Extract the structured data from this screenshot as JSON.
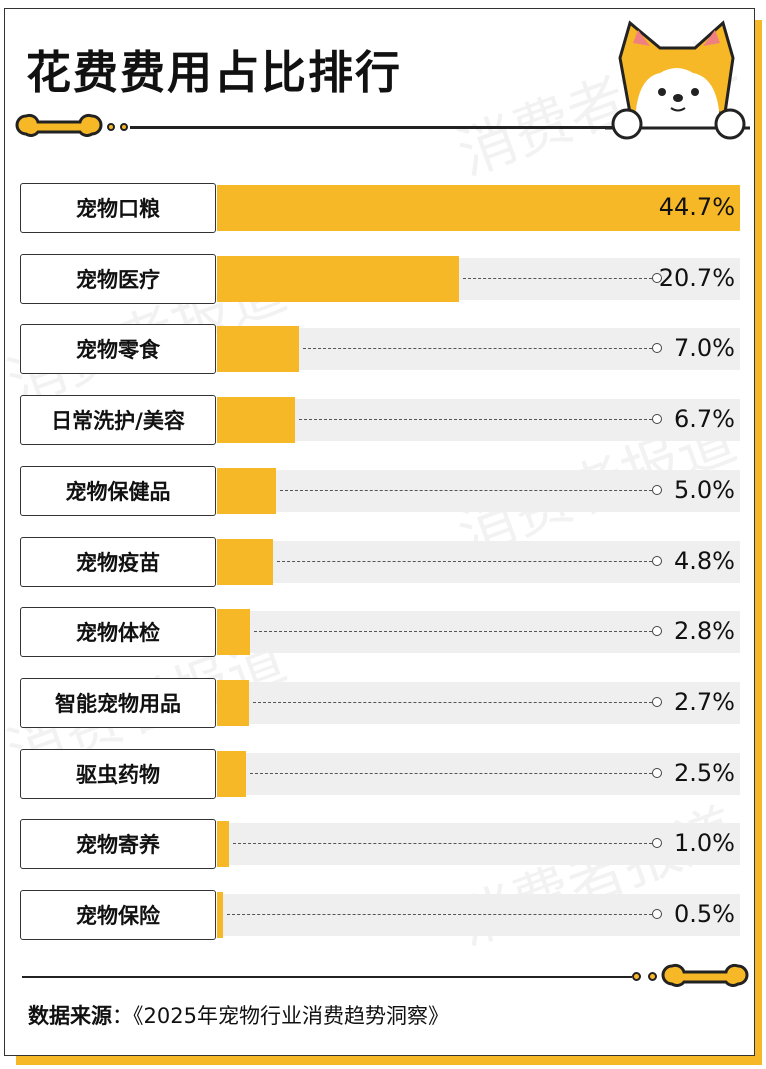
{
  "title": "花费费用占比排行",
  "watermark": "消费者报道",
  "source_label": "数据来源",
  "source_sep": "：",
  "source_text": "《2025年宠物行业消费趋势洞察》",
  "colors": {
    "bar": "#f6b826",
    "track": "#efefef",
    "border": "#333333"
  },
  "chart_data": {
    "type": "bar",
    "orientation": "horizontal",
    "title": "花费费用占比排行",
    "categories": [
      "宠物口粮",
      "宠物医疗",
      "宠物零食",
      "日常洗护/美容",
      "宠物保健品",
      "宠物疫苗",
      "宠物体检",
      "智能宠物用品",
      "驱虫药物",
      "宠物寄养",
      "宠物保险"
    ],
    "values": [
      44.7,
      20.7,
      7.0,
      6.7,
      5.0,
      4.8,
      2.8,
      2.7,
      2.5,
      1.0,
      0.5
    ],
    "labels": [
      "44.7%",
      "20.7%",
      "7.0%",
      "6.7%",
      "5.0%",
      "4.8%",
      "2.8%",
      "2.7%",
      "2.5%",
      "1.0%",
      "0.5%"
    ],
    "unit": "%"
  }
}
